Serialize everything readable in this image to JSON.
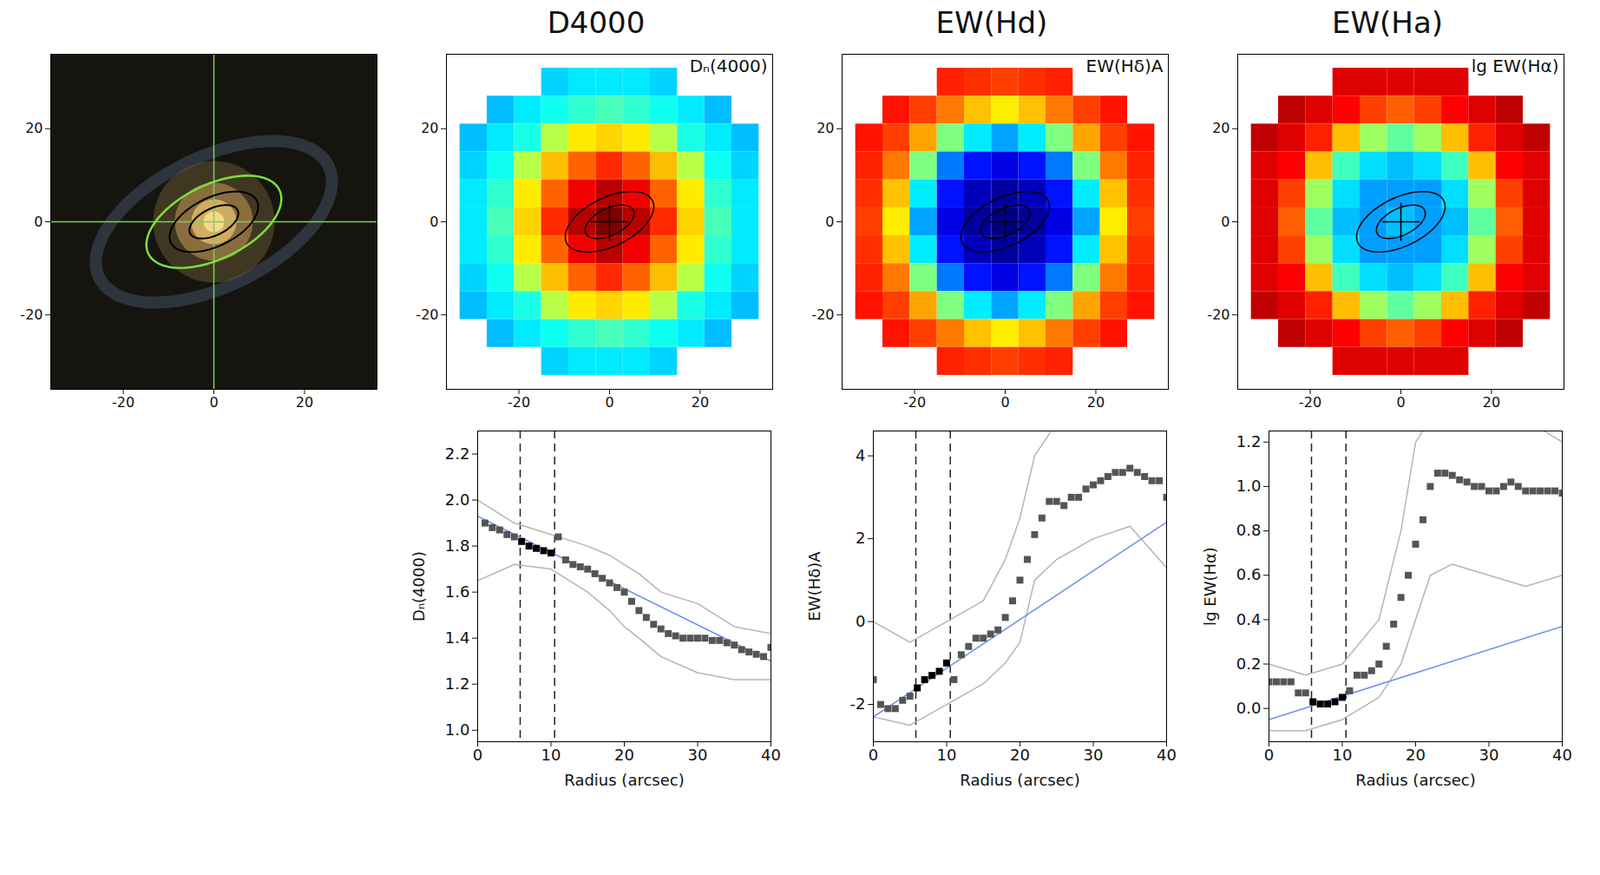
{
  "chart_data": [
    {
      "type": "image",
      "xlim": [
        -36,
        36
      ],
      "ylim": [
        -36,
        36
      ],
      "xticks": [
        -20,
        0,
        20
      ],
      "yticks": [
        -20,
        0,
        20
      ],
      "center": [
        0,
        0
      ],
      "apertures": [
        5.8,
        10.5
      ],
      "outer_ellipse": 16
    },
    {
      "type": "heatmap",
      "title": "D4000",
      "label": "Dₙ(4000)",
      "xlim": [
        -36,
        36
      ],
      "ylim": [
        -36,
        36
      ],
      "xticks": [
        -20,
        0,
        20
      ],
      "yticks": [
        -20,
        0,
        20
      ],
      "center": [
        0,
        0
      ],
      "apertures": [
        5.8,
        10.5
      ],
      "x": [
        -30,
        -24,
        -18,
        -12,
        -6,
        0,
        6,
        12,
        18,
        24,
        30
      ],
      "y": [
        30,
        24,
        18,
        12,
        6,
        0,
        -6,
        -12,
        -18,
        -24,
        -30
      ],
      "zlim": [
        1.1,
        2.0
      ],
      "cells": [
        [
          null,
          null,
          null,
          1.4,
          1.42,
          1.42,
          1.42,
          1.4,
          null,
          null,
          null
        ],
        [
          null,
          1.38,
          1.42,
          1.45,
          1.48,
          1.5,
          1.48,
          1.45,
          1.42,
          1.38,
          null
        ],
        [
          1.38,
          1.42,
          1.46,
          1.6,
          1.68,
          1.7,
          1.68,
          1.6,
          1.46,
          1.42,
          1.38
        ],
        [
          1.4,
          1.45,
          1.6,
          1.72,
          1.8,
          1.85,
          1.8,
          1.72,
          1.6,
          1.45,
          1.4
        ],
        [
          1.42,
          1.48,
          1.68,
          1.8,
          1.9,
          1.95,
          1.9,
          1.8,
          1.68,
          1.48,
          1.42
        ],
        [
          1.42,
          1.5,
          1.7,
          1.85,
          1.95,
          2.0,
          1.95,
          1.85,
          1.7,
          1.5,
          1.42
        ],
        [
          1.42,
          1.48,
          1.68,
          1.8,
          1.9,
          1.95,
          1.9,
          1.8,
          1.68,
          1.48,
          1.42
        ],
        [
          1.4,
          1.45,
          1.6,
          1.72,
          1.8,
          1.85,
          1.8,
          1.72,
          1.6,
          1.45,
          1.4
        ],
        [
          1.38,
          1.42,
          1.46,
          1.6,
          1.68,
          1.7,
          1.68,
          1.6,
          1.46,
          1.42,
          1.38
        ],
        [
          null,
          1.38,
          1.42,
          1.45,
          1.48,
          1.5,
          1.48,
          1.45,
          1.42,
          1.38,
          null
        ],
        [
          null,
          null,
          null,
          1.4,
          1.42,
          1.42,
          1.42,
          1.4,
          null,
          null,
          null
        ]
      ]
    },
    {
      "type": "heatmap",
      "title": "EW(Hd)",
      "label": "EW(Hδ)A",
      "xlim": [
        -36,
        36
      ],
      "ylim": [
        -36,
        36
      ],
      "xticks": [
        -20,
        0,
        20
      ],
      "yticks": [
        -20,
        0,
        20
      ],
      "center": [
        0,
        0
      ],
      "apertures": [
        5.8,
        10.5
      ],
      "x": [
        -30,
        -24,
        -18,
        -12,
        -6,
        0,
        6,
        12,
        18,
        24,
        30
      ],
      "y": [
        30,
        24,
        18,
        12,
        6,
        0,
        -6,
        -12,
        -18,
        -24,
        -30
      ],
      "zlim": [
        -2.5,
        4.5
      ],
      "cells": [
        [
          null,
          null,
          null,
          3.4,
          3.3,
          3.2,
          3.3,
          3.4,
          null,
          null,
          null
        ],
        [
          null,
          3.5,
          3.2,
          2.8,
          2.3,
          2.0,
          2.3,
          2.8,
          3.2,
          3.5,
          null
        ],
        [
          3.5,
          3.2,
          2.5,
          1.0,
          0.0,
          -0.5,
          0.0,
          1.0,
          2.5,
          3.2,
          3.5
        ],
        [
          3.4,
          2.8,
          1.0,
          -0.8,
          -1.5,
          -1.8,
          -1.5,
          -0.8,
          1.0,
          2.8,
          3.4
        ],
        [
          3.3,
          2.3,
          0.0,
          -1.5,
          -2.1,
          -2.3,
          -2.1,
          -1.5,
          0.0,
          2.3,
          3.3
        ],
        [
          3.2,
          2.0,
          -0.5,
          -1.8,
          -2.3,
          -2.5,
          -2.3,
          -1.8,
          -0.5,
          2.0,
          3.2
        ],
        [
          3.3,
          2.3,
          0.0,
          -1.5,
          -2.1,
          -2.3,
          -2.1,
          -1.5,
          0.0,
          2.3,
          3.3
        ],
        [
          3.4,
          2.8,
          1.0,
          -0.8,
          -1.5,
          -1.8,
          -1.5,
          -0.8,
          1.0,
          2.8,
          3.4
        ],
        [
          3.5,
          3.2,
          2.5,
          1.0,
          0.0,
          -0.5,
          0.0,
          1.0,
          2.5,
          3.2,
          3.5
        ],
        [
          null,
          3.5,
          3.2,
          2.8,
          2.3,
          2.0,
          2.3,
          2.8,
          3.2,
          3.5,
          null
        ],
        [
          null,
          null,
          null,
          3.4,
          3.3,
          3.2,
          3.3,
          3.4,
          null,
          null,
          null
        ]
      ]
    },
    {
      "type": "heatmap",
      "title": "EW(Ha)",
      "label": "lg EW(Hα)",
      "xlim": [
        -36,
        36
      ],
      "ylim": [
        -36,
        36
      ],
      "xticks": [
        -20,
        0,
        20
      ],
      "yticks": [
        -20,
        0,
        20
      ],
      "center": [
        0,
        0
      ],
      "apertures": [
        5.8,
        10.5
      ],
      "x": [
        -30,
        -24,
        -18,
        -12,
        -6,
        0,
        6,
        12,
        18,
        24,
        30
      ],
      "y": [
        30,
        24,
        18,
        12,
        6,
        0,
        -6,
        -12,
        -18,
        -24,
        -30
      ],
      "zlim": [
        -0.4,
        1.2
      ],
      "cells": [
        [
          null,
          null,
          null,
          1.05,
          1.05,
          1.05,
          1.05,
          1.05,
          null,
          null,
          null
        ],
        [
          null,
          1.1,
          1.05,
          1.0,
          0.9,
          0.85,
          0.9,
          1.0,
          1.05,
          1.1,
          null
        ],
        [
          1.1,
          1.05,
          0.95,
          0.7,
          0.45,
          0.35,
          0.45,
          0.7,
          0.95,
          1.05,
          1.1
        ],
        [
          1.05,
          1.0,
          0.7,
          0.3,
          0.15,
          0.1,
          0.15,
          0.3,
          0.7,
          1.0,
          1.05
        ],
        [
          1.05,
          0.9,
          0.45,
          0.15,
          0.05,
          0.05,
          0.05,
          0.15,
          0.45,
          0.9,
          1.05
        ],
        [
          1.05,
          0.85,
          0.35,
          0.1,
          0.05,
          0.1,
          0.05,
          0.1,
          0.35,
          0.85,
          1.05
        ],
        [
          1.05,
          0.9,
          0.45,
          0.15,
          0.05,
          0.05,
          0.05,
          0.15,
          0.45,
          0.9,
          1.05
        ],
        [
          1.05,
          1.0,
          0.7,
          0.3,
          0.15,
          0.1,
          0.15,
          0.3,
          0.7,
          1.0,
          1.05
        ],
        [
          1.1,
          1.05,
          0.95,
          0.7,
          0.45,
          0.35,
          0.45,
          0.7,
          0.95,
          1.05,
          1.1
        ],
        [
          null,
          1.1,
          1.05,
          1.0,
          0.9,
          0.85,
          0.9,
          1.0,
          1.05,
          1.1,
          null
        ],
        [
          null,
          null,
          null,
          1.05,
          1.05,
          1.05,
          1.05,
          1.05,
          null,
          null,
          null
        ]
      ]
    },
    {
      "type": "scatter",
      "marker": "square",
      "xlabel": "Radius (arcsec)",
      "ylabel": "Dₙ(4000)",
      "xlim": [
        0,
        40
      ],
      "ylim": [
        0.95,
        2.3
      ],
      "xticks": [
        0,
        10,
        20,
        30,
        40
      ],
      "yticks": [
        {
          "value": 1.0,
          "label": "1.0"
        },
        1.2,
        1.4,
        1.6,
        1.8,
        {
          "value": 2.0,
          "label": "2.0"
        },
        2.2
      ],
      "apertures": [
        5.8,
        10.5
      ],
      "x": [
        1,
        2,
        3,
        4,
        5,
        6,
        7,
        8,
        9,
        10,
        11,
        12,
        13,
        14,
        15,
        16,
        17,
        18,
        19,
        20,
        21,
        22,
        23,
        24,
        25,
        26,
        27,
        28,
        29,
        30,
        31,
        32,
        33,
        34,
        35,
        36,
        37,
        38,
        39,
        40
      ],
      "values": [
        1.9,
        1.88,
        1.87,
        1.85,
        1.84,
        1.82,
        1.8,
        1.79,
        1.78,
        1.77,
        1.84,
        1.74,
        1.72,
        1.71,
        1.7,
        1.68,
        1.66,
        1.64,
        1.62,
        1.6,
        1.56,
        1.52,
        1.49,
        1.46,
        1.44,
        1.42,
        1.41,
        1.4,
        1.4,
        1.4,
        1.4,
        1.39,
        1.39,
        1.38,
        1.37,
        1.35,
        1.34,
        1.33,
        1.32,
        1.36
      ],
      "fit": {
        "x": [
          0,
          40
        ],
        "values": [
          1.93,
          1.3
        ]
      },
      "upper": {
        "x": [
          0,
          5,
          10,
          15,
          18,
          20,
          22,
          25,
          30,
          35,
          40
        ],
        "values": [
          2.0,
          1.9,
          1.85,
          1.8,
          1.76,
          1.72,
          1.68,
          1.6,
          1.55,
          1.45,
          1.42
        ]
      },
      "lower": {
        "x": [
          0,
          5,
          10,
          15,
          18,
          20,
          22,
          25,
          30,
          35,
          40
        ],
        "values": [
          1.65,
          1.72,
          1.7,
          1.6,
          1.52,
          1.45,
          1.4,
          1.32,
          1.25,
          1.22,
          1.22
        ]
      }
    },
    {
      "type": "scatter",
      "marker": "square",
      "xlabel": "Radius (arcsec)",
      "ylabel": "EW(Hδ)A",
      "xlim": [
        0,
        40
      ],
      "ylim": [
        -2.9,
        4.6
      ],
      "xticks": [
        0,
        10,
        20,
        30,
        40
      ],
      "yticks": [
        -2,
        0,
        2,
        4
      ],
      "apertures": [
        5.8,
        10.5
      ],
      "x": [
        0,
        1,
        2,
        3,
        4,
        5,
        6,
        7,
        8,
        9,
        10,
        11,
        12,
        13,
        14,
        15,
        16,
        17,
        18,
        19,
        20,
        21,
        22,
        23,
        24,
        25,
        26,
        27,
        28,
        29,
        30,
        31,
        32,
        33,
        34,
        35,
        36,
        37,
        38,
        39,
        40
      ],
      "values": [
        -1.4,
        -2.0,
        -2.1,
        -2.1,
        -1.9,
        -1.8,
        -1.6,
        -1.4,
        -1.3,
        -1.2,
        -1.0,
        -1.4,
        -0.8,
        -0.6,
        -0.4,
        -0.4,
        -0.3,
        -0.2,
        0.1,
        0.5,
        1.0,
        1.5,
        2.1,
        2.5,
        2.9,
        2.9,
        2.8,
        3.0,
        3.0,
        3.2,
        3.3,
        3.4,
        3.5,
        3.6,
        3.6,
        3.7,
        3.6,
        3.5,
        3.4,
        3.4,
        3.0
      ],
      "fit": {
        "x": [
          0,
          40
        ],
        "values": [
          -2.3,
          2.4
        ]
      },
      "upper": {
        "x": [
          0,
          5,
          10,
          15,
          18,
          20,
          22,
          25,
          30,
          35,
          40
        ],
        "values": [
          0.0,
          -0.5,
          0.0,
          0.5,
          1.5,
          2.5,
          4.0,
          4.8,
          5.0,
          5.0,
          5.0
        ]
      },
      "lower": {
        "x": [
          0,
          5,
          10,
          15,
          18,
          20,
          22,
          25,
          30,
          35,
          40
        ],
        "values": [
          -2.3,
          -2.5,
          -2.0,
          -1.5,
          -1.0,
          -0.5,
          1.0,
          1.5,
          2.0,
          2.3,
          1.3
        ]
      }
    },
    {
      "type": "scatter",
      "marker": "square",
      "xlabel": "Radius (arcsec)",
      "ylabel": "lg EW(Hα)",
      "xlim": [
        0,
        40
      ],
      "ylim": [
        -0.15,
        1.25
      ],
      "xticks": [
        0,
        10,
        20,
        30,
        40
      ],
      "yticks": [
        {
          "value": 0.0,
          "label": "0.0"
        },
        0.2,
        0.4,
        0.6,
        0.8,
        {
          "value": 1.0,
          "label": "1.0"
        },
        1.2
      ],
      "apertures": [
        5.8,
        10.5
      ],
      "x": [
        0,
        1,
        2,
        3,
        4,
        5,
        6,
        7,
        8,
        9,
        10,
        11,
        12,
        13,
        14,
        15,
        16,
        17,
        18,
        19,
        20,
        21,
        22,
        23,
        24,
        25,
        26,
        27,
        28,
        29,
        30,
        31,
        32,
        33,
        34,
        35,
        36,
        37,
        38,
        39,
        40
      ],
      "values": [
        0.12,
        0.12,
        0.12,
        0.12,
        0.07,
        0.07,
        0.03,
        0.02,
        0.02,
        0.03,
        0.05,
        0.08,
        0.15,
        0.15,
        0.17,
        0.2,
        0.28,
        0.38,
        0.5,
        0.6,
        0.74,
        0.85,
        1.0,
        1.06,
        1.06,
        1.05,
        1.03,
        1.02,
        1.0,
        1.0,
        0.98,
        0.98,
        1.0,
        1.02,
        1.0,
        0.98,
        0.98,
        0.98,
        0.98,
        0.98,
        0.97
      ],
      "fit": {
        "x": [
          0,
          40
        ],
        "values": [
          -0.05,
          0.37
        ]
      },
      "upper": {
        "x": [
          0,
          5,
          10,
          15,
          18,
          20,
          22,
          25,
          30,
          35,
          40
        ],
        "values": [
          0.2,
          0.15,
          0.2,
          0.4,
          0.8,
          1.2,
          1.3,
          1.3,
          1.3,
          1.3,
          1.2
        ]
      },
      "lower": {
        "x": [
          0,
          5,
          10,
          15,
          18,
          20,
          22,
          25,
          30,
          35,
          40
        ],
        "values": [
          -0.1,
          -0.1,
          -0.05,
          0.05,
          0.2,
          0.4,
          0.6,
          0.65,
          0.6,
          0.55,
          0.6
        ]
      }
    }
  ]
}
